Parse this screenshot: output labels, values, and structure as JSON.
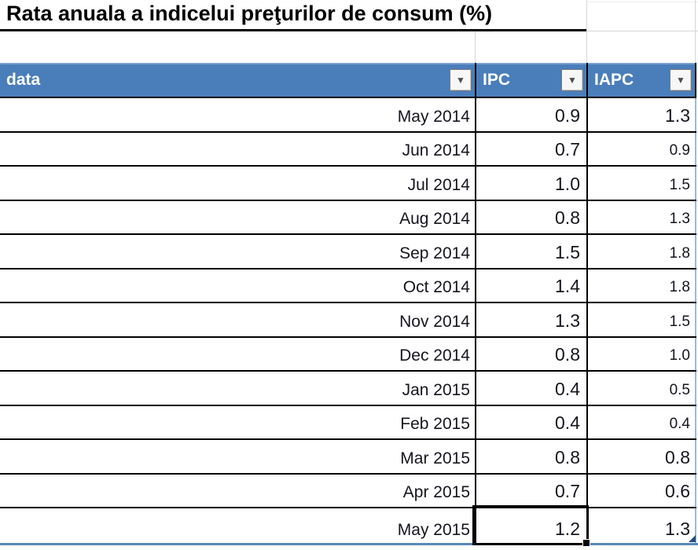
{
  "title": "Rata anuala a indicelui preţurilor de consum (%)",
  "icons": {
    "filter": "▼"
  },
  "colors": {
    "header_bg": "#4A7EBB",
    "header_text": "#FFFFFF",
    "row_border": "#000000",
    "table_outer_light_blue": "#9AB8DF",
    "bottom_border_blue": "#5B87B7",
    "resize_handle_blue": "#1F4E79"
  },
  "chart_data": {
    "type": "table",
    "title": "Rata anuala a indicelui preţurilor de consum (%)",
    "categories": [
      "May 2014",
      "Jun 2014",
      "Jul 2014",
      "Aug 2014",
      "Sep 2014",
      "Oct 2014",
      "Nov 2014",
      "Dec 2014",
      "Jan 2015",
      "Feb 2015",
      "Mar 2015",
      "Apr 2015",
      "May 2015"
    ],
    "series": [
      {
        "name": "IPC",
        "values": [
          0.9,
          0.7,
          1.0,
          0.8,
          1.5,
          1.4,
          1.3,
          0.8,
          0.4,
          0.4,
          0.8,
          0.7,
          1.2
        ]
      },
      {
        "name": "IAPC",
        "values": [
          1.3,
          0.9,
          1.5,
          1.3,
          1.8,
          1.8,
          1.5,
          1.0,
          0.5,
          0.4,
          0.8,
          0.6,
          1.3
        ]
      }
    ]
  },
  "table": {
    "columns": [
      {
        "key": "data",
        "label": "data"
      },
      {
        "key": "ipc",
        "label": "IPC"
      },
      {
        "key": "iapc",
        "label": "IAPC"
      }
    ],
    "rows": [
      {
        "data": "May 2014",
        "ipc": "0.9",
        "iapc": "1.3",
        "iapc_small": false
      },
      {
        "data": "Jun 2014",
        "ipc": "0.7",
        "iapc": "0.9",
        "iapc_small": true
      },
      {
        "data": "Jul 2014",
        "ipc": "1.0",
        "iapc": "1.5",
        "iapc_small": true
      },
      {
        "data": "Aug 2014",
        "ipc": "0.8",
        "iapc": "1.3",
        "iapc_small": true
      },
      {
        "data": "Sep 2014",
        "ipc": "1.5",
        "iapc": "1.8",
        "iapc_small": true
      },
      {
        "data": "Oct 2014",
        "ipc": "1.4",
        "iapc": "1.8",
        "iapc_small": true
      },
      {
        "data": "Nov 2014",
        "ipc": "1.3",
        "iapc": "1.5",
        "iapc_small": true
      },
      {
        "data": "Dec 2014",
        "ipc": "0.8",
        "iapc": "1.0",
        "iapc_small": true
      },
      {
        "data": "Jan 2015",
        "ipc": "0.4",
        "iapc": "0.5",
        "iapc_small": true
      },
      {
        "data": "Feb 2015",
        "ipc": "0.4",
        "iapc": "0.4",
        "iapc_small": true
      },
      {
        "data": "Mar 2015",
        "ipc": "0.8",
        "iapc": "0.8",
        "iapc_small": false
      },
      {
        "data": "Apr 2015",
        "ipc": "0.7",
        "iapc": "0.6",
        "iapc_small": false
      },
      {
        "data": "May 2015",
        "ipc": "1.2",
        "iapc": "1.3",
        "iapc_small": false
      }
    ],
    "selected_cell": {
      "row": "May 2015",
      "column": "IPC",
      "value": "1.2"
    }
  }
}
